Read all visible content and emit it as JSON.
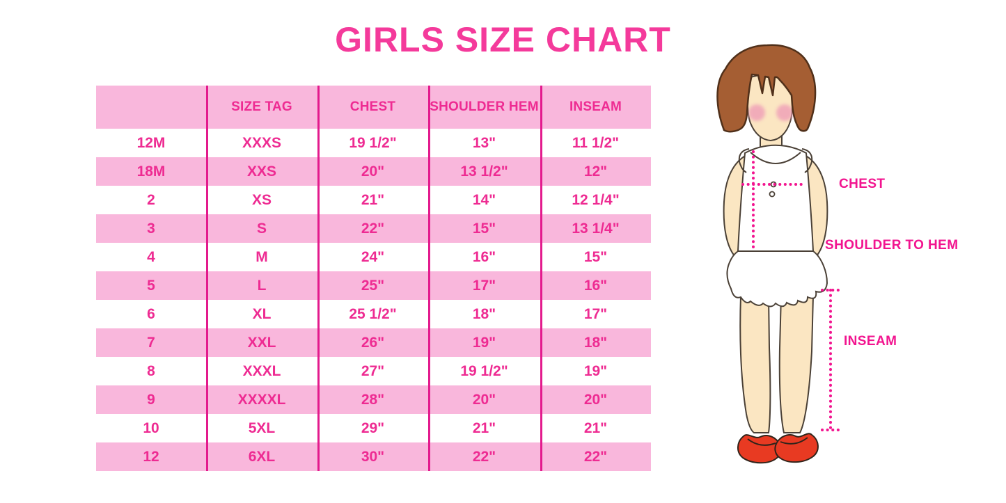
{
  "title": "GIRLS SIZE CHART",
  "chart_data": {
    "type": "table",
    "title": "GIRLS SIZE CHART",
    "columns": [
      "",
      "SIZE TAG",
      "CHEST",
      "SHOULDER HEM",
      "INSEAM"
    ],
    "rows": [
      [
        "12M",
        "XXXS",
        "19 1/2\"",
        "13\"",
        "11 1/2\""
      ],
      [
        "18M",
        "XXS",
        "20\"",
        "13 1/2\"",
        "12\""
      ],
      [
        "2",
        "XS",
        "21\"",
        "14\"",
        "12 1/4\""
      ],
      [
        "3",
        "S",
        "22\"",
        "15\"",
        "13 1/4\""
      ],
      [
        "4",
        "M",
        "24\"",
        "16\"",
        "15\""
      ],
      [
        "5",
        "L",
        "25\"",
        "17\"",
        "16\""
      ],
      [
        "6",
        "XL",
        "25 1/2\"",
        "18\"",
        "17\""
      ],
      [
        "7",
        "XXL",
        "26\"",
        "19\"",
        "18\""
      ],
      [
        "8",
        "XXXL",
        "27\"",
        "19 1/2\"",
        "19\""
      ],
      [
        "9",
        "XXXXL",
        "28\"",
        "20\"",
        "20\""
      ],
      [
        "10",
        "5XL",
        "29\"",
        "21\"",
        "21\""
      ],
      [
        "12",
        "6XL",
        "30\"",
        "22\"",
        "22\""
      ]
    ],
    "layout_hints": {
      "header_fill": "pink",
      "row_stripes": "alternating white then pink starting with white under header",
      "column_dividers": "vertical magenta lines only, no horizontal borders"
    }
  },
  "figure_labels": {
    "chest": "CHEST",
    "shoulder_to_hem": "SHOULDER TO HEM",
    "inseam": "INSEAM"
  },
  "colors": {
    "title_pink": "#F43A9B",
    "row_pink": "#F9B7DC",
    "line_magenta": "#E31A8D",
    "text_magenta": "#EE2B92",
    "label_magenta": "#F2148F",
    "hair_brown": "#A55E33",
    "hair_outline": "#50301A",
    "skin": "#FBE6C2",
    "skin_outline": "#4A4036",
    "blush_pink": "#F0A3B8",
    "shoe_red": "#E83A22",
    "dress_white": "#FFFFFF"
  }
}
